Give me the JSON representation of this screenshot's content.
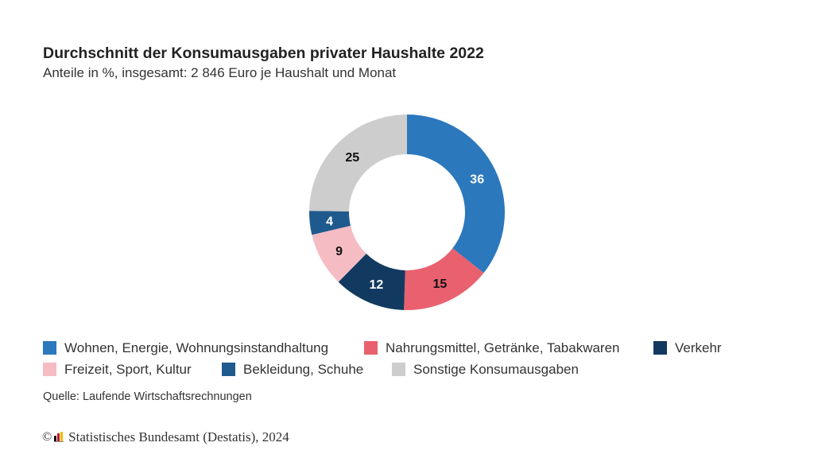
{
  "title": "Durchschnitt der Konsumausgaben privater Haushalte 2022",
  "subtitle": "Anteile in %, insgesamt: 2 846 Euro je Haushalt und Monat",
  "source": "Quelle: Laufende Wirtschaftsrechnungen",
  "copyright": {
    "symbol": "©",
    "text": "Statistisches Bundesamt (Destatis), 2024"
  },
  "chart_data": {
    "type": "pie",
    "subtype": "donut",
    "title": "Durchschnitt der Konsumausgaben privater Haushalte 2022",
    "subtitle": "Anteile in %, insgesamt: 2 846 Euro je Haushalt und Monat",
    "unit": "%",
    "legend_position": "bottom",
    "slices": [
      {
        "label": "Wohnen, Energie, Wohnungsinstandhaltung",
        "value": 36,
        "color": "#2b78bd",
        "label_color": "#ffffff"
      },
      {
        "label": "Nahrungsmittel, Getränke, Tabakwaren",
        "value": 15,
        "color": "#e9616f",
        "label_color": "#111111"
      },
      {
        "label": "Verkehr",
        "value": 12,
        "color": "#123a60",
        "label_color": "#ffffff"
      },
      {
        "label": "Freizeit, Sport, Kultur",
        "value": 9,
        "color": "#f6bcc4",
        "label_color": "#111111"
      },
      {
        "label": "Bekleidung, Schuhe",
        "value": 4,
        "color": "#1f5a8f",
        "label_color": "#ffffff"
      },
      {
        "label": "Sonstige Konsumausgaben",
        "value": 25,
        "color": "#cdcdcd",
        "label_color": "#111111"
      }
    ]
  }
}
